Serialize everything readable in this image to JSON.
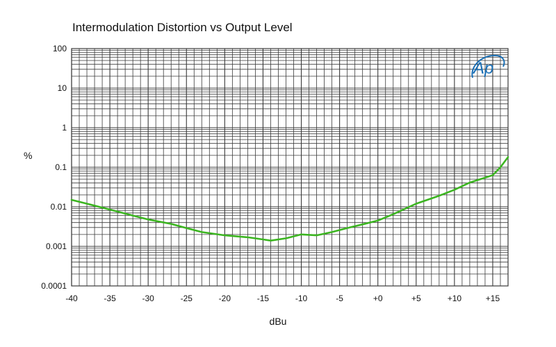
{
  "chart_data": {
    "type": "line",
    "title": "Intermodulation Distortion vs Output Level",
    "xlabel": "dBu",
    "ylabel": "%",
    "xlim": [
      -40,
      17
    ],
    "ylim": [
      0.0001,
      100
    ],
    "yscale": "log",
    "grid": true,
    "x_ticks": [
      -40,
      -35,
      -30,
      -25,
      -20,
      -15,
      -10,
      -5,
      0,
      5,
      10,
      15
    ],
    "x_tick_labels": [
      "-40",
      "-35",
      "-30",
      "-25",
      "-20",
      "-15",
      "-10",
      "-5",
      "+0",
      "+5",
      "+10",
      "+15"
    ],
    "y_ticks": [
      0.0001,
      0.001,
      0.01,
      0.1,
      1,
      10,
      100
    ],
    "y_tick_labels": [
      "0.0001",
      "0.001",
      "0.01",
      "0.1",
      "1",
      "10",
      "100"
    ],
    "series": [
      {
        "color": "#3cb521",
        "x": [
          -40,
          -38,
          -35,
          -32,
          -30,
          -27,
          -25,
          -23,
          -20,
          -17,
          -15,
          -14,
          -12,
          -10,
          -8,
          -6,
          -4,
          -2,
          0,
          2,
          5,
          8,
          10,
          12,
          15,
          16,
          17
        ],
        "y": [
          0.015,
          0.012,
          0.0085,
          0.006,
          0.0048,
          0.0037,
          0.0029,
          0.0023,
          0.0019,
          0.0017,
          0.0015,
          0.0014,
          0.0016,
          0.002,
          0.0019,
          0.0023,
          0.0029,
          0.0036,
          0.0045,
          0.0065,
          0.012,
          0.019,
          0.027,
          0.041,
          0.063,
          0.1,
          0.18
        ]
      }
    ]
  },
  "logo_text": "Ap",
  "colors": {
    "grid": "#3a3a3a",
    "line": "#3cb521",
    "logo": "#1a6fb5"
  }
}
